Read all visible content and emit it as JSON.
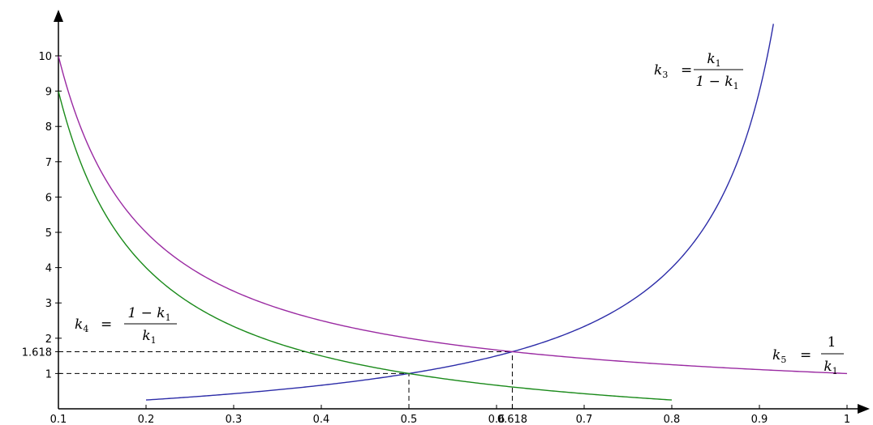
{
  "chart_data": {
    "type": "line",
    "title": "",
    "xlabel": "",
    "ylabel": "",
    "xlim": [
      0.1,
      1.0
    ],
    "ylim": [
      0,
      11
    ],
    "grid": false,
    "x_ticks": [
      0.1,
      0.2,
      0.3,
      0.4,
      0.5,
      0.6,
      0.618,
      0.7,
      0.8,
      0.9,
      1.0
    ],
    "x_tick_labels": [
      "0.1",
      "0.2",
      "0.3",
      "0.4",
      "0.5",
      "0.6",
      "0.618",
      "0.7",
      "0.8",
      "0.9",
      "1"
    ],
    "y_ticks": [
      1,
      1.618,
      2,
      3,
      4,
      5,
      6,
      7,
      8,
      9,
      10
    ],
    "y_tick_labels": [
      "1",
      "1.618",
      "2",
      "3",
      "4",
      "5",
      "6",
      "7",
      "8",
      "9",
      "10"
    ],
    "series": [
      {
        "key": "k3",
        "formula": "k1/(1-k1)",
        "color": "#2c2ca8",
        "x": [
          0.2,
          0.3,
          0.4,
          0.5,
          0.6,
          0.618,
          0.7,
          0.8,
          0.85,
          0.9,
          0.916
        ],
        "values": [
          0.25,
          0.43,
          0.67,
          1.0,
          1.5,
          1.618,
          2.33,
          4.0,
          5.67,
          9.0,
          10.9
        ]
      },
      {
        "key": "k4",
        "formula": "(1-k1)/k1",
        "color": "#1a8a1a",
        "x": [
          0.1,
          0.15,
          0.2,
          0.3,
          0.4,
          0.5,
          0.6,
          0.618,
          0.7,
          0.8
        ],
        "values": [
          9.0,
          5.67,
          4.0,
          2.33,
          1.5,
          1.0,
          0.67,
          0.618,
          0.43,
          0.25
        ]
      },
      {
        "key": "k5",
        "formula": "1/k1",
        "color": "#9a2aa2",
        "x": [
          0.1,
          0.15,
          0.2,
          0.3,
          0.4,
          0.5,
          0.6,
          0.618,
          0.7,
          0.8,
          0.9,
          1.0
        ],
        "values": [
          10.0,
          6.67,
          5.0,
          3.33,
          2.5,
          2.0,
          1.67,
          1.618,
          1.43,
          1.25,
          1.11,
          1.0
        ]
      }
    ],
    "reference_lines": [
      {
        "from": [
          0.1,
          1.0
        ],
        "to": [
          0.5,
          1.0
        ],
        "style": "dashed"
      },
      {
        "from": [
          0.5,
          0.0
        ],
        "to": [
          0.5,
          1.0
        ],
        "style": "dashed"
      },
      {
        "from": [
          0.1,
          1.618
        ],
        "to": [
          0.618,
          1.618
        ],
        "style": "dashed"
      },
      {
        "from": [
          0.618,
          0.0
        ],
        "to": [
          0.618,
          1.618
        ],
        "style": "dashed"
      }
    ],
    "annotations": {
      "k3": {
        "lhs": "k",
        "lhs_sub": "3",
        "eq": "=",
        "numerator": "k",
        "numerator_sub": "1",
        "denominator": "1 − k",
        "denominator_sub": "1"
      },
      "k4": {
        "lhs": "k",
        "lhs_sub": "4",
        "eq": "=",
        "numerator": "1 − k",
        "numerator_sub": "1",
        "denominator": "k",
        "denominator_sub": "1"
      },
      "k5": {
        "lhs": "k",
        "lhs_sub": "5",
        "eq": "=",
        "numerator": "1",
        "numerator_sub": "",
        "denominator": "k",
        "denominator_sub": "1"
      }
    }
  }
}
